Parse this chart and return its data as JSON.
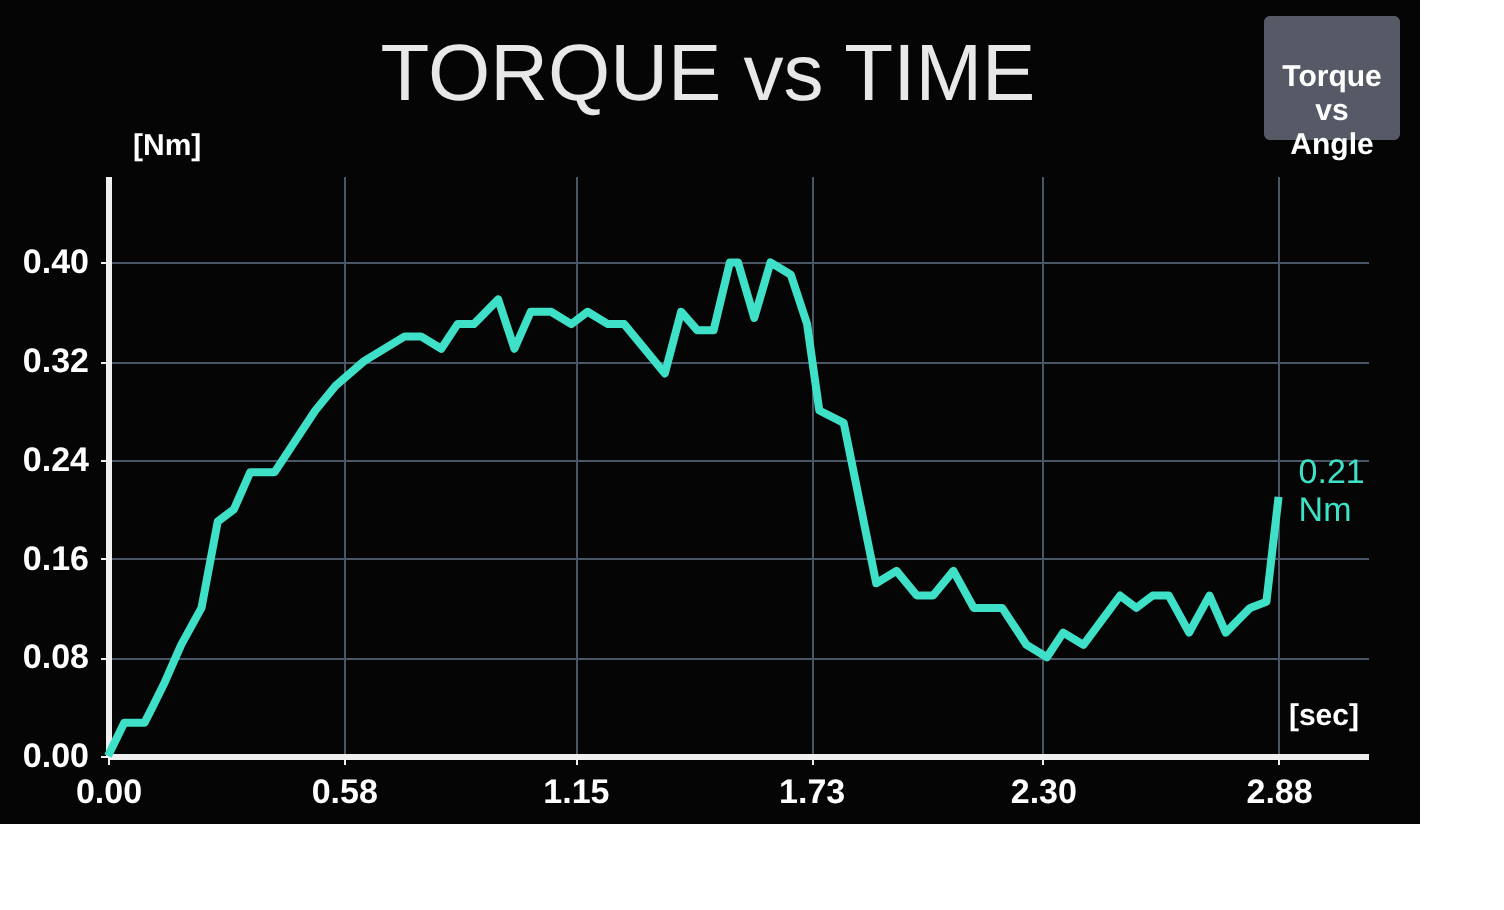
{
  "chart_data": {
    "type": "line",
    "title": "TORQUE vs TIME",
    "xlabel": "[sec]",
    "ylabel": "[Nm]",
    "annotations": [
      "Torque vs Angle",
      {
        "text": "0.21 Nm",
        "x": 2.88,
        "y": 0.21
      }
    ],
    "x": [
      0,
      0.04,
      0.09,
      0.11,
      0.14,
      0.18,
      0.23,
      0.27,
      0.31,
      0.35,
      0.41,
      0.46,
      0.51,
      0.56,
      0.63,
      0.73,
      0.77,
      0.82,
      0.86,
      0.9,
      0.96,
      1.0,
      1.04,
      1.09,
      1.14,
      1.18,
      1.23,
      1.27,
      1.37,
      1.41,
      1.45,
      1.49,
      1.53,
      1.55,
      1.59,
      1.63,
      1.68,
      1.72,
      1.75,
      1.81,
      1.89,
      1.94,
      1.99,
      2.03,
      2.08,
      2.13,
      2.2,
      2.26,
      2.31,
      2.35,
      2.4,
      2.49,
      2.53,
      2.57,
      2.61,
      2.66,
      2.71,
      2.75,
      2.81,
      2.85,
      2.88
    ],
    "series": [
      {
        "color": "#3fe0c8",
        "values": [
          0,
          0.027,
          0.027,
          0.04,
          0.06,
          0.09,
          0.12,
          0.19,
          0.2,
          0.23,
          0.23,
          0.255,
          0.28,
          0.3,
          0.32,
          0.34,
          0.34,
          0.33,
          0.35,
          0.35,
          0.37,
          0.33,
          0.36,
          0.36,
          0.35,
          0.36,
          0.35,
          0.35,
          0.31,
          0.36,
          0.345,
          0.345,
          0.4,
          0.4,
          0.355,
          0.4,
          0.39,
          0.35,
          0.28,
          0.27,
          0.14,
          0.15,
          0.13,
          0.13,
          0.15,
          0.12,
          0.12,
          0.09,
          0.08,
          0.1,
          0.09,
          0.13,
          0.12,
          0.13,
          0.13,
          0.1,
          0.13,
          0.1,
          0.12,
          0.125,
          0.21
        ]
      }
    ],
    "xlim": [
      0,
      3.1
    ],
    "ylim": [
      0,
      0.47
    ],
    "xticks": [
      {
        "value": 0,
        "label": "0.00"
      },
      {
        "value": 0.58,
        "label": "0.58"
      },
      {
        "value": 1.15,
        "label": "1.15"
      },
      {
        "value": 1.73,
        "label": "1.73"
      },
      {
        "value": 2.3,
        "label": "2.30"
      },
      {
        "value": 2.88,
        "label": "2.88"
      }
    ],
    "yticks": [
      {
        "value": 0,
        "label": "0.00"
      },
      {
        "value": 0.08,
        "label": "0.08"
      },
      {
        "value": 0.16,
        "label": "0.16"
      },
      {
        "value": 0.24,
        "label": "0.24"
      },
      {
        "value": 0.32,
        "label": "0.32"
      },
      {
        "value": 0.4,
        "label": "0.40"
      }
    ],
    "grid": true,
    "marker": "none",
    "line_style": "solid",
    "legend": false
  }
}
